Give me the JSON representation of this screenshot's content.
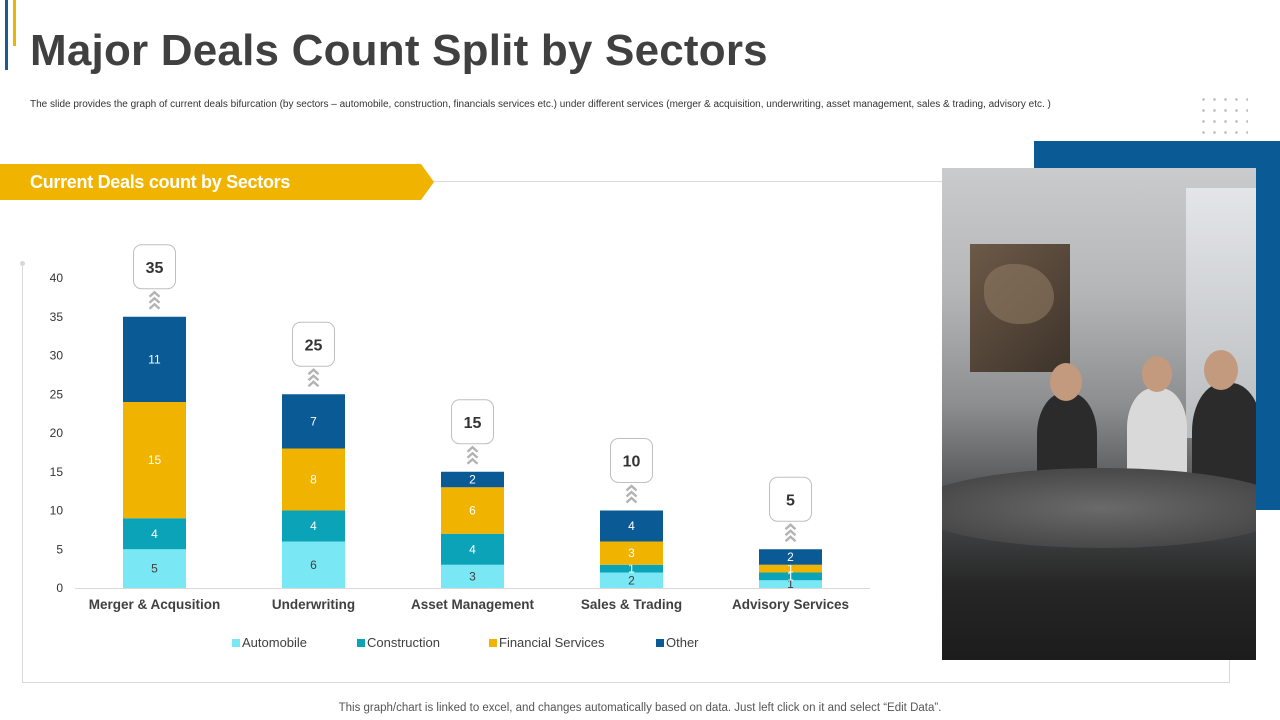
{
  "header": {
    "title": "Major Deals Count Split by Sectors",
    "subtitle": "The slide provides the graph of current deals bifurcation (by sectors – automobile, construction, financials services etc.) under different services (merger & acquisition, underwriting, asset management, sales & trading, advisory etc. )"
  },
  "banner": {
    "label": "Current Deals count by Sectors"
  },
  "chart_data": {
    "type": "bar",
    "stacked": true,
    "title": "Current Deals count by Sectors",
    "categories": [
      "Merger & Acqusition",
      "Underwriting",
      "Asset Management",
      "Sales & Trading",
      "Advisory Services"
    ],
    "series": [
      {
        "name": "Automobile",
        "color": "#7ae8f4",
        "values": [
          5,
          6,
          3,
          2,
          1
        ]
      },
      {
        "name": "Construction",
        "color": "#0aa3b8",
        "values": [
          4,
          4,
          4,
          1,
          1
        ]
      },
      {
        "name": "Financial Services",
        "color": "#f0b400",
        "values": [
          15,
          8,
          6,
          3,
          1
        ]
      },
      {
        "name": "Other",
        "color": "#0a5a96",
        "values": [
          11,
          7,
          2,
          4,
          2
        ]
      }
    ],
    "totals": [
      35,
      25,
      15,
      10,
      5
    ],
    "ylim": [
      0,
      40
    ],
    "yticks": [
      0,
      5,
      10,
      15,
      20,
      25,
      30,
      35,
      40
    ],
    "xlabel": "",
    "ylabel": "",
    "legend_position": "bottom",
    "grid": false
  },
  "image": {
    "icon": "meeting-photo"
  },
  "footer": {
    "note": "This graph/chart is linked to excel,  and changes automatically based on data. Just left click on it and select “Edit Data”."
  }
}
